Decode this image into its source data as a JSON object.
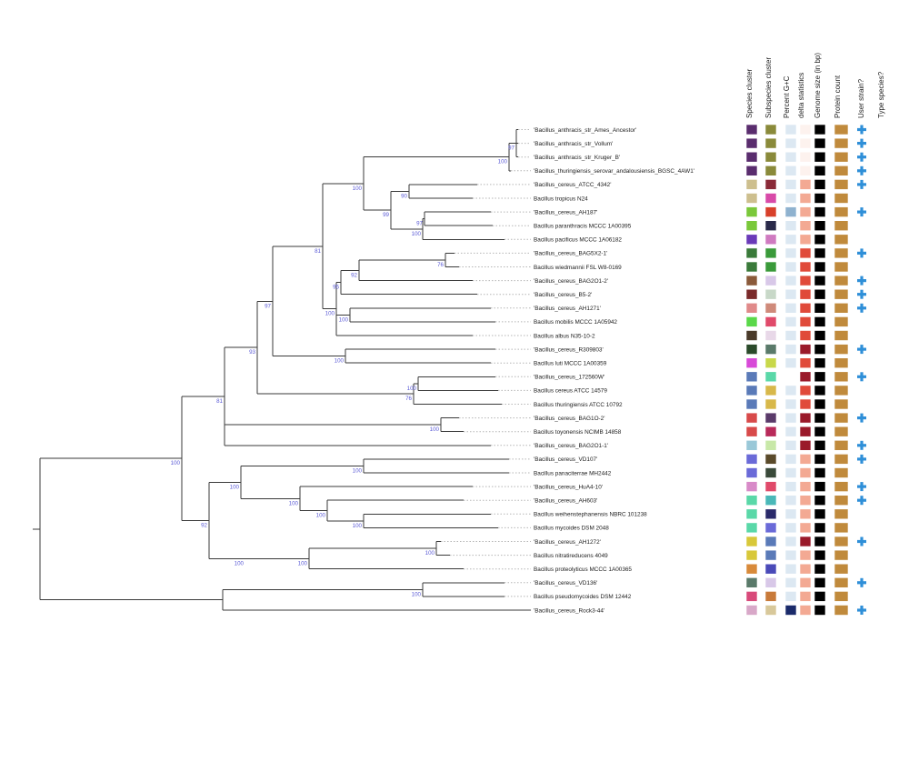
{
  "columns": [
    "Species cluster",
    "Subspecies cluster",
    "Percent G+C",
    "delta statistics",
    "Genome size (in bp)",
    "Protein count",
    "User strain?",
    "Type species?"
  ],
  "taxa": [
    {
      "label": "'Bacillus_anthracis_str_Ames_Ancestor'",
      "species": "#5a2d6e",
      "subspecies": "#8a8a3a",
      "gc": "#dce8f2",
      "delta": "#fdf2ee",
      "size": "#000000",
      "protein": "#c08a3c",
      "user": true
    },
    {
      "label": "'Bacillus_anthracis_str_Vollum'",
      "species": "#5a2d6e",
      "subspecies": "#8a8a3a",
      "gc": "#dce8f2",
      "delta": "#fdf2ee",
      "size": "#000000",
      "protein": "#c08a3c",
      "user": true
    },
    {
      "label": "'Bacillus_anthracis_str_Kruger_B'",
      "species": "#5a2d6e",
      "subspecies": "#8a8a3a",
      "gc": "#dce8f2",
      "delta": "#fdf2ee",
      "size": "#000000",
      "protein": "#c08a3c",
      "user": true
    },
    {
      "label": "'Bacillus_thuringiensis_serovar_andalousiensis_BGSC_4AW1'",
      "species": "#5a2d6e",
      "subspecies": "#8a8a3a",
      "gc": "#dce8f2",
      "delta": "#fdf2ee",
      "size": "#000000",
      "protein": "#c08a3c",
      "user": true
    },
    {
      "label": "'Bacillus_cereus_ATCC_4342'",
      "species": "#cdbf8e",
      "subspecies": "#8a2a38",
      "gc": "#dce8f2",
      "delta": "#f3a993",
      "size": "#000000",
      "protein": "#c08a3c",
      "user": true
    },
    {
      "label": "Bacillus tropicus N24",
      "species": "#cdbf8e",
      "subspecies": "#d84aa8",
      "gc": "#dce8f2",
      "delta": "#f3a993",
      "size": "#000000",
      "protein": "#c08a3c",
      "user": false
    },
    {
      "label": "'Bacillus_cereus_AH187'",
      "species": "#7ac83a",
      "subspecies": "#d8402a",
      "gc": "#8fb2cf",
      "delta": "#f3a993",
      "size": "#000000",
      "protein": "#c08a3c",
      "user": true
    },
    {
      "label": "Bacillus paranthracis MCCC 1A00395",
      "species": "#7ac83a",
      "subspecies": "#2a2a4a",
      "gc": "#dce8f2",
      "delta": "#f3a993",
      "size": "#000000",
      "protein": "#c08a3c",
      "user": false
    },
    {
      "label": "Bacillus pacificus MCCC 1A06182",
      "species": "#6a3ab8",
      "subspecies": "#cf7ac0",
      "gc": "#dce8f2",
      "delta": "#f3a993",
      "size": "#000000",
      "protein": "#c08a3c",
      "user": false
    },
    {
      "label": "'Bacillus_cereus_BAG5X2-1'",
      "species": "#3a7a3a",
      "subspecies": "#3a9a3a",
      "gc": "#dce8f2",
      "delta": "#e04a3a",
      "size": "#000000",
      "protein": "#c08a3c",
      "user": true
    },
    {
      "label": "Bacillus wiedmannii FSL W8-0169",
      "species": "#3a7a3a",
      "subspecies": "#3a9a3a",
      "gc": "#dce8f2",
      "delta": "#e04a3a",
      "size": "#000000",
      "protein": "#c08a3c",
      "user": false
    },
    {
      "label": "'Bacillus_cereus_BAG2O1-2'",
      "species": "#8a5a3a",
      "subspecies": "#d8c8e8",
      "gc": "#dce8f2",
      "delta": "#e04a3a",
      "size": "#000000",
      "protein": "#c08a3c",
      "user": true
    },
    {
      "label": "'Bacillus_cereus_B5-2'",
      "species": "#7a2a2a",
      "subspecies": "#c8d8c8",
      "gc": "#dce8f2",
      "delta": "#e04a3a",
      "size": "#000000",
      "protein": "#c08a3c",
      "user": true
    },
    {
      "label": "'Bacillus_cereus_AH1271'",
      "species": "#e08a8a",
      "subspecies": "#cf8a7a",
      "gc": "#dce8f2",
      "delta": "#e04a3a",
      "size": "#000000",
      "protein": "#c08a3c",
      "user": true
    },
    {
      "label": "Bacillus mobilis MCCC 1A05942",
      "species": "#5ad84a",
      "subspecies": "#e04a6a",
      "gc": "#dce8f2",
      "delta": "#e04a3a",
      "size": "#000000",
      "protein": "#c08a3c",
      "user": false
    },
    {
      "label": "Bacillus albus N35-10-2",
      "species": "#4a3a2a",
      "subspecies": "#e8d8e8",
      "gc": "#dce8f2",
      "delta": "#e04a3a",
      "size": "#000000",
      "protein": "#c08a3c",
      "user": false
    },
    {
      "label": "'Bacillus_cereus_R309803'",
      "species": "#2a4a2a",
      "subspecies": "#5a7a6a",
      "gc": "#dce8f2",
      "delta": "#9a1a2a",
      "size": "#000000",
      "protein": "#c08a3c",
      "user": true
    },
    {
      "label": "Bacillus luti MCCC 1A00359",
      "species": "#d84ad8",
      "subspecies": "#c8d84a",
      "gc": "#dce8f2",
      "delta": "#e04a3a",
      "size": "#000000",
      "protein": "#c08a3c",
      "user": false
    },
    {
      "label": "'Bacillus_cereus_172560W'",
      "species": "#5a7ab8",
      "subspecies": "#5ad8a8",
      "gc": "#ffffff",
      "delta": "#9a1a2a",
      "size": "#000000",
      "protein": "#c08a3c",
      "user": true
    },
    {
      "label": "Bacillus cereus ATCC 14579",
      "species": "#5a7ab8",
      "subspecies": "#d8b84a",
      "gc": "#dce8f2",
      "delta": "#e04a3a",
      "size": "#000000",
      "protein": "#c08a3c",
      "user": false
    },
    {
      "label": "Bacillus thuringiensis ATCC 10792",
      "species": "#5a7ab8",
      "subspecies": "#d8b84a",
      "gc": "#dce8f2",
      "delta": "#e04a3a",
      "size": "#000000",
      "protein": "#c08a3c",
      "user": false
    },
    {
      "label": "'Bacillus_cereus_BAG1O-2'",
      "species": "#d84a4a",
      "subspecies": "#5a3a6a",
      "gc": "#dce8f2",
      "delta": "#9a1a2a",
      "size": "#000000",
      "protein": "#c08a3c",
      "user": true
    },
    {
      "label": "Bacillus toyonensis NCIMB 14858",
      "species": "#d84a4a",
      "subspecies": "#b82a5a",
      "gc": "#dce8f2",
      "delta": "#9a1a2a",
      "size": "#000000",
      "protein": "#c08a3c",
      "user": false
    },
    {
      "label": "'Bacillus_cereus_BAG2O1-1'",
      "species": "#9ac8d8",
      "subspecies": "#c8e8a8",
      "gc": "#dce8f2",
      "delta": "#9a1a2a",
      "size": "#000000",
      "protein": "#c08a3c",
      "user": true
    },
    {
      "label": "'Bacillus_cereus_VD107'",
      "species": "#6a6ad8",
      "subspecies": "#5a4a2a",
      "gc": "#dce8f2",
      "delta": "#f3a993",
      "size": "#000000",
      "protein": "#c08a3c",
      "user": true
    },
    {
      "label": "Bacillus panaciterrae MH2442",
      "species": "#6a6ad8",
      "subspecies": "#3a4a3a",
      "gc": "#dce8f2",
      "delta": "#f3a993",
      "size": "#000000",
      "protein": "#c08a3c",
      "user": false
    },
    {
      "label": "'Bacillus_cereus_HuA4-10'",
      "species": "#d88ac8",
      "subspecies": "#e04a6a",
      "gc": "#dce8f2",
      "delta": "#f3a993",
      "size": "#000000",
      "protein": "#c08a3c",
      "user": true
    },
    {
      "label": "'Bacillus_cereus_AH603'",
      "species": "#5ad8a8",
      "subspecies": "#4ab8b8",
      "gc": "#dce8f2",
      "delta": "#f3a993",
      "size": "#000000",
      "protein": "#c08a3c",
      "user": true
    },
    {
      "label": "Bacillus weihenstephanensis NBRC 101238",
      "species": "#5ad8a8",
      "subspecies": "#2a2a6a",
      "gc": "#dce8f2",
      "delta": "#f3a993",
      "size": "#000000",
      "protein": "#c08a3c",
      "user": false
    },
    {
      "label": "Bacillus mycoides DSM 2048",
      "species": "#5ad8a8",
      "subspecies": "#6a6ad8",
      "gc": "#dce8f2",
      "delta": "#f3a993",
      "size": "#000000",
      "protein": "#c08a3c",
      "user": false
    },
    {
      "label": "'Bacillus_cereus_AH1272'",
      "species": "#d8c83a",
      "subspecies": "#5a7ab8",
      "gc": "#dce8f2",
      "delta": "#9a1a2a",
      "size": "#000000",
      "protein": "#c08a3c",
      "user": true
    },
    {
      "label": "Bacillus nitratireducens 4049",
      "species": "#d8c83a",
      "subspecies": "#5a7ab8",
      "gc": "#dce8f2",
      "delta": "#f3a993",
      "size": "#000000",
      "protein": "#c08a3c",
      "user": false
    },
    {
      "label": "Bacillus proteolyticus MCCC 1A00365",
      "species": "#d88a3a",
      "subspecies": "#4a4ab8",
      "gc": "#dce8f2",
      "delta": "#f3a993",
      "size": "#000000",
      "protein": "#c08a3c",
      "user": false
    },
    {
      "label": "'Bacillus_cereus_VD136'",
      "species": "#5a7a6a",
      "subspecies": "#d8c8e8",
      "gc": "#dce8f2",
      "delta": "#f3a993",
      "size": "#000000",
      "protein": "#c08a3c",
      "user": true
    },
    {
      "label": "Bacillus pseudomycoides DSM 12442",
      "species": "#d84a7a",
      "subspecies": "#c87a3a",
      "gc": "#dce8f2",
      "delta": "#f3a993",
      "size": "#000000",
      "protein": "#c08a3c",
      "user": false
    },
    {
      "label": "'Bacillus_cereus_Rock3-44'",
      "species": "#d8a8c8",
      "subspecies": "#d8c89a",
      "gc": "#1a2a6a",
      "delta": "#f3a993",
      "size": "#000000",
      "protein": "#c08a3c",
      "user": true
    }
  ],
  "support_values": [
    "97",
    "100",
    "90",
    "97",
    "100",
    "99",
    "100",
    "76",
    "92",
    "95",
    "100",
    "100",
    "81",
    "100",
    "97",
    "100",
    "76",
    "93",
    "100",
    "81",
    "100",
    "100",
    "100",
    "100",
    "100",
    "100",
    "100",
    "100",
    "92",
    "100",
    "100"
  ]
}
